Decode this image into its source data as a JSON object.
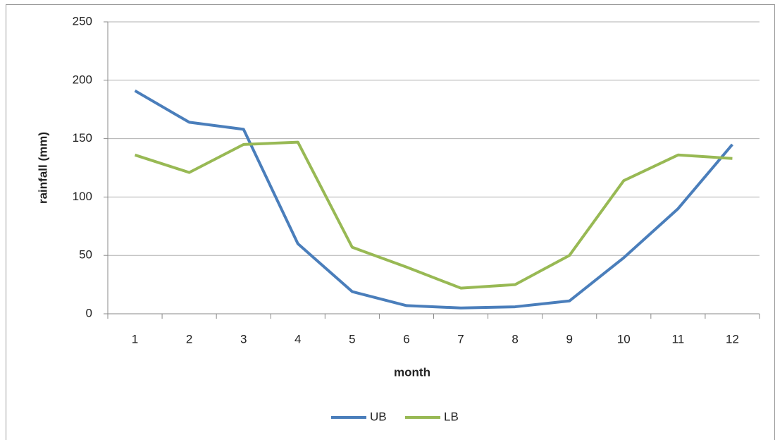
{
  "chart_data": {
    "type": "line",
    "categories": [
      "1",
      "2",
      "3",
      "4",
      "5",
      "6",
      "7",
      "8",
      "9",
      "10",
      "11",
      "12"
    ],
    "series": [
      {
        "name": "UB",
        "color": "#4a7ebb",
        "values": [
          191,
          164,
          158,
          60,
          19,
          7,
          5,
          6,
          11,
          48,
          90,
          145
        ]
      },
      {
        "name": "LB",
        "color": "#98b954",
        "values": [
          136,
          121,
          145,
          147,
          57,
          40,
          22,
          25,
          50,
          114,
          136,
          133
        ]
      }
    ],
    "x_label": "month",
    "y_label": "rainfall (mm)",
    "ylim": [
      0,
      250
    ],
    "yticks": [
      0,
      50,
      100,
      150,
      200,
      250
    ],
    "grid": true,
    "legend": "bottom"
  }
}
